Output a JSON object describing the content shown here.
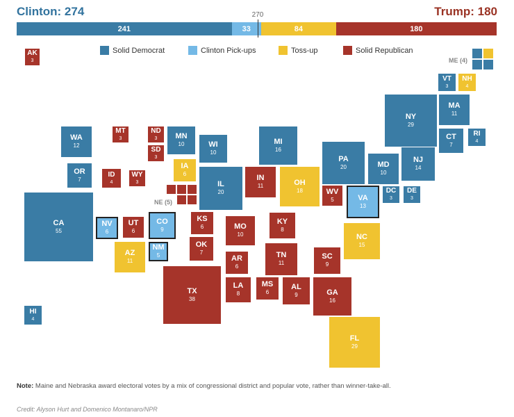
{
  "header": {
    "clinton_total": "Clinton: 274",
    "trump_total": "Trump: 180",
    "threshold": "270"
  },
  "bar": [
    {
      "label": "241",
      "value": 241,
      "color": "#3a7ca5"
    },
    {
      "label": "33",
      "value": 33,
      "color": "#74b9e6"
    },
    {
      "label": "84",
      "value": 84,
      "color": "#f0c330"
    },
    {
      "label": "180",
      "value": 180,
      "color": "#a6342a"
    }
  ],
  "legend": [
    {
      "label": "Solid Democrat",
      "color": "#3a7ca5"
    },
    {
      "label": "Clinton Pick-ups",
      "color": "#74b9e6"
    },
    {
      "label": "Toss-up",
      "color": "#f0c330"
    },
    {
      "label": "Solid Republican",
      "color": "#a6342a"
    }
  ],
  "colors": {
    "D": "#3a7ca5",
    "P": "#74b9e6",
    "T": "#f0c330",
    "R": "#a6342a"
  },
  "states": [
    {
      "abbr": "AK",
      "ev": "3",
      "cat": "R"
    },
    {
      "abbr": "HI",
      "ev": "4",
      "cat": "D"
    },
    {
      "abbr": "WA",
      "ev": "12",
      "cat": "D"
    },
    {
      "abbr": "OR",
      "ev": "7",
      "cat": "D"
    },
    {
      "abbr": "CA",
      "ev": "55",
      "cat": "D"
    },
    {
      "abbr": "MT",
      "ev": "3",
      "cat": "R"
    },
    {
      "abbr": "ID",
      "ev": "4",
      "cat": "R"
    },
    {
      "abbr": "WY",
      "ev": "3",
      "cat": "R"
    },
    {
      "abbr": "NV",
      "ev": "6",
      "cat": "P"
    },
    {
      "abbr": "UT",
      "ev": "6",
      "cat": "R"
    },
    {
      "abbr": "AZ",
      "ev": "11",
      "cat": "T"
    },
    {
      "abbr": "ND",
      "ev": "3",
      "cat": "R"
    },
    {
      "abbr": "SD",
      "ev": "3",
      "cat": "R"
    },
    {
      "abbr": "CO",
      "ev": "9",
      "cat": "P"
    },
    {
      "abbr": "NM",
      "ev": "5",
      "cat": "P"
    },
    {
      "abbr": "KS",
      "ev": "6",
      "cat": "R"
    },
    {
      "abbr": "OK",
      "ev": "7",
      "cat": "R"
    },
    {
      "abbr": "TX",
      "ev": "38",
      "cat": "R"
    },
    {
      "abbr": "MN",
      "ev": "10",
      "cat": "D"
    },
    {
      "abbr": "IA",
      "ev": "6",
      "cat": "T"
    },
    {
      "abbr": "MO",
      "ev": "10",
      "cat": "R"
    },
    {
      "abbr": "AR",
      "ev": "6",
      "cat": "R"
    },
    {
      "abbr": "LA",
      "ev": "8",
      "cat": "R"
    },
    {
      "abbr": "WI",
      "ev": "10",
      "cat": "D"
    },
    {
      "abbr": "IL",
      "ev": "20",
      "cat": "D"
    },
    {
      "abbr": "MI",
      "ev": "16",
      "cat": "D"
    },
    {
      "abbr": "IN",
      "ev": "11",
      "cat": "R"
    },
    {
      "abbr": "OH",
      "ev": "18",
      "cat": "T"
    },
    {
      "abbr": "KY",
      "ev": "8",
      "cat": "R"
    },
    {
      "abbr": "TN",
      "ev": "11",
      "cat": "R"
    },
    {
      "abbr": "MS",
      "ev": "6",
      "cat": "R"
    },
    {
      "abbr": "AL",
      "ev": "9",
      "cat": "R"
    },
    {
      "abbr": "GA",
      "ev": "16",
      "cat": "R"
    },
    {
      "abbr": "FL",
      "ev": "29",
      "cat": "T"
    },
    {
      "abbr": "SC",
      "ev": "9",
      "cat": "R"
    },
    {
      "abbr": "NC",
      "ev": "15",
      "cat": "T"
    },
    {
      "abbr": "VA",
      "ev": "13",
      "cat": "P"
    },
    {
      "abbr": "WV",
      "ev": "5",
      "cat": "R"
    },
    {
      "abbr": "PA",
      "ev": "20",
      "cat": "D"
    },
    {
      "abbr": "MD",
      "ev": "10",
      "cat": "D"
    },
    {
      "abbr": "DC",
      "ev": "3",
      "cat": "D"
    },
    {
      "abbr": "DE",
      "ev": "3",
      "cat": "D"
    },
    {
      "abbr": "NJ",
      "ev": "14",
      "cat": "D"
    },
    {
      "abbr": "NY",
      "ev": "29",
      "cat": "D"
    },
    {
      "abbr": "CT",
      "ev": "7",
      "cat": "D"
    },
    {
      "abbr": "RI",
      "ev": "4",
      "cat": "D"
    },
    {
      "abbr": "MA",
      "ev": "11",
      "cat": "D"
    },
    {
      "abbr": "VT",
      "ev": "3",
      "cat": "D"
    },
    {
      "abbr": "NH",
      "ev": "4",
      "cat": "T"
    }
  ],
  "split_states": {
    "me": {
      "label": "ME (4)",
      "cats": [
        "D",
        "T",
        "D",
        "D"
      ]
    },
    "ne": {
      "label": "NE (5)",
      "cats": [
        "R",
        "R",
        "R",
        "R",
        "R"
      ]
    }
  },
  "note": {
    "prefix": "Note:",
    "text": " Maine and Nebraska award electoral votes by a mix of congressional district and popular vote, rather than winner-take-all."
  },
  "credit": "Credit: Alyson Hurt and Domenico Montanaro/NPR"
}
